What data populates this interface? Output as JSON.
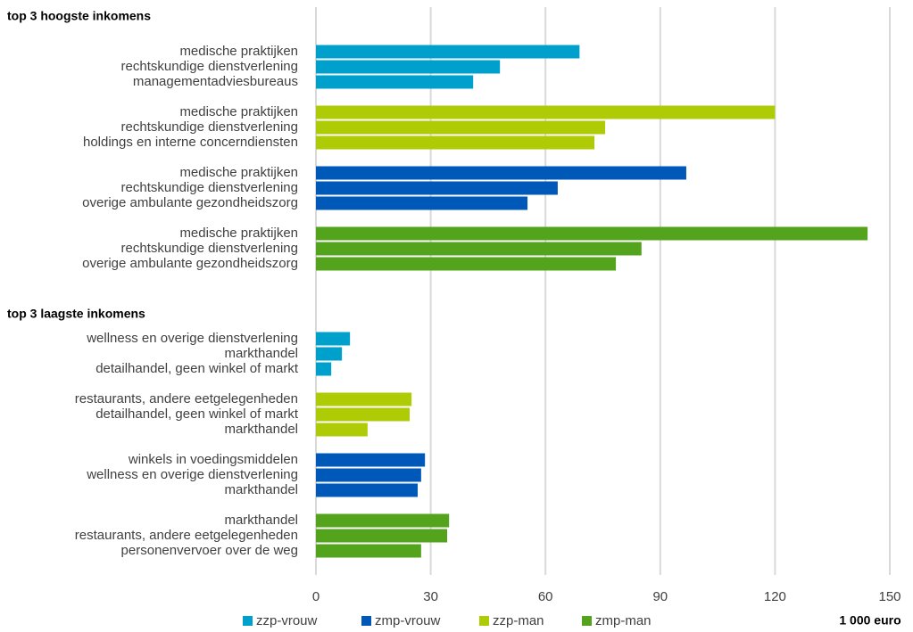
{
  "chart_data": {
    "type": "bar",
    "orientation": "horizontal",
    "sections": [
      "top 3 hoogste inkomens",
      "top 3 laagste inkomens"
    ],
    "series": [
      {
        "name": "zzp-vrouw",
        "color": "#00a0cc",
        "top": {
          "categories": [
            "medische praktijken",
            "rechtskundige dienstverlening",
            "managementadviesbureaus"
          ],
          "values": [
            68.9,
            48.1,
            41.1
          ]
        },
        "bottom": {
          "categories": [
            "wellness en overige dienstverlening",
            "markthandel",
            "detailhandel, geen winkel of markt"
          ],
          "values": [
            8.9,
            6.8,
            4.0
          ]
        }
      },
      {
        "name": "zmp-vrouw",
        "color": "#0058b8",
        "top": {
          "categories": [
            "medische praktijken",
            "rechtskundige dienstverlening",
            "overige ambulante gezondheidszorg"
          ],
          "values": [
            96.8,
            63.2,
            55.3
          ]
        },
        "bottom": {
          "categories": [
            "winkels in voedingsmiddelen",
            "wellness en overige dienstverlening",
            "markthandel"
          ],
          "values": [
            28.5,
            27.5,
            26.6
          ]
        }
      },
      {
        "name": "zzp-man",
        "color": "#afcb05",
        "top": {
          "categories": [
            "medische praktijken",
            "rechtskundige dienstverlening",
            "holdings en interne concerndiensten"
          ],
          "values": [
            120,
            75.6,
            72.8
          ]
        },
        "bottom": {
          "categories": [
            "restaurants, andere eetgelegenheden",
            "detailhandel, geen winkel of markt",
            "markthandel"
          ],
          "values": [
            25.0,
            24.5,
            13.5
          ]
        }
      },
      {
        "name": "zmp-man",
        "color": "#53a31d",
        "top": {
          "categories": [
            "medische praktijken",
            "rechtskundige dienstverlening",
            "overige ambulante gezondheidszorg"
          ],
          "values": [
            144.2,
            85.1,
            78.4
          ]
        },
        "bottom": {
          "categories": [
            "markthandel",
            "restaurants, andere eetgelegenheden",
            "personenvervoer over de weg"
          ],
          "values": [
            34.8,
            34.3,
            27.5
          ]
        }
      }
    ],
    "xlabel": "1 000 euro",
    "xlim": [
      0,
      150
    ],
    "xticks": [
      0,
      30,
      60,
      90,
      120,
      150
    ],
    "grid": true
  }
}
